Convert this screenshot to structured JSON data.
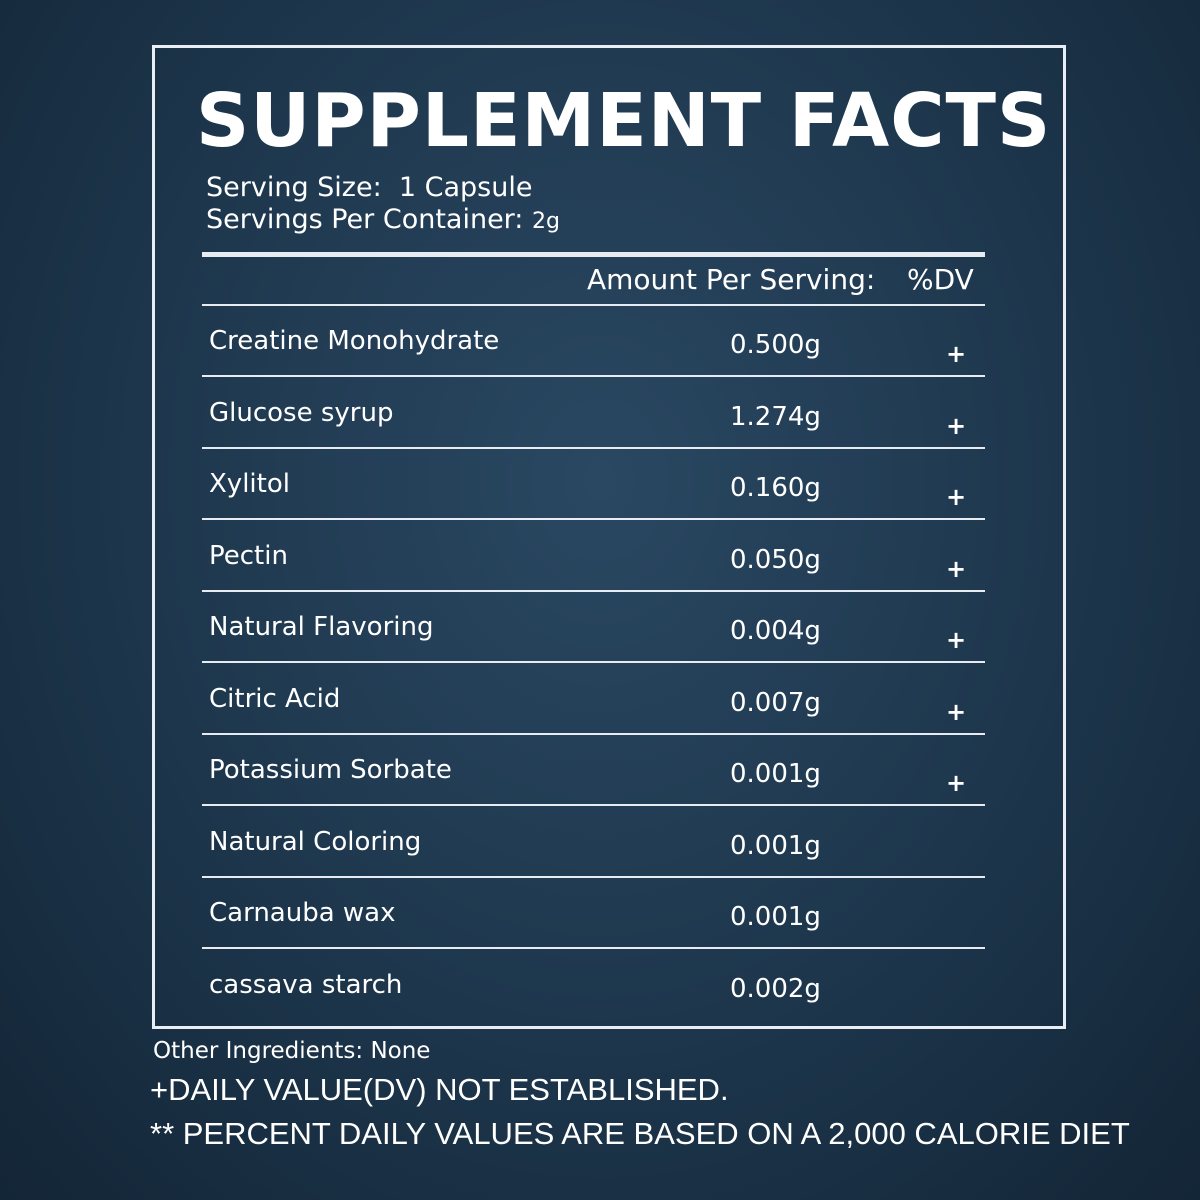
{
  "header": {
    "title": "SUPPLEMENT FACTS",
    "serving_size_label": "Serving Size:",
    "serving_size": "1 Capsule",
    "servings_label": "Servings Per Container:",
    "servings": "2g"
  },
  "table": {
    "columns": [
      "Amount Per Serving:",
      "%DV"
    ],
    "rows": [
      {
        "name": "Creatine Monohydrate",
        "amount": "0.500g",
        "dv": "+"
      },
      {
        "name": "Glucose syrup",
        "amount": "1.274g",
        "dv": "+"
      },
      {
        "name": "Xylitol",
        "amount": "0.160g",
        "dv": "+"
      },
      {
        "name": "Pectin",
        "amount": "0.050g",
        "dv": "+"
      },
      {
        "name": "Natural Flavoring",
        "amount": "0.004g",
        "dv": "+"
      },
      {
        "name": "Citric Acid",
        "amount": "0.007g",
        "dv": "+"
      },
      {
        "name": "Potassium Sorbate",
        "amount": "0.001g",
        "dv": "+"
      },
      {
        "name": "Natural Coloring",
        "amount": "0.001g"
      },
      {
        "name": "Carnauba wax",
        "amount": "0.001g"
      },
      {
        "name": "cassava starch",
        "amount": "0.002g"
      }
    ]
  },
  "footer": {
    "other": "Other Ingredients: None",
    "note1": "+DAILY VALUE(DV) NOT ESTABLISHED.",
    "note2": "** PERCENT DAILY VALUES ARE BASED ON A 2,000 CALORIE DIET"
  }
}
